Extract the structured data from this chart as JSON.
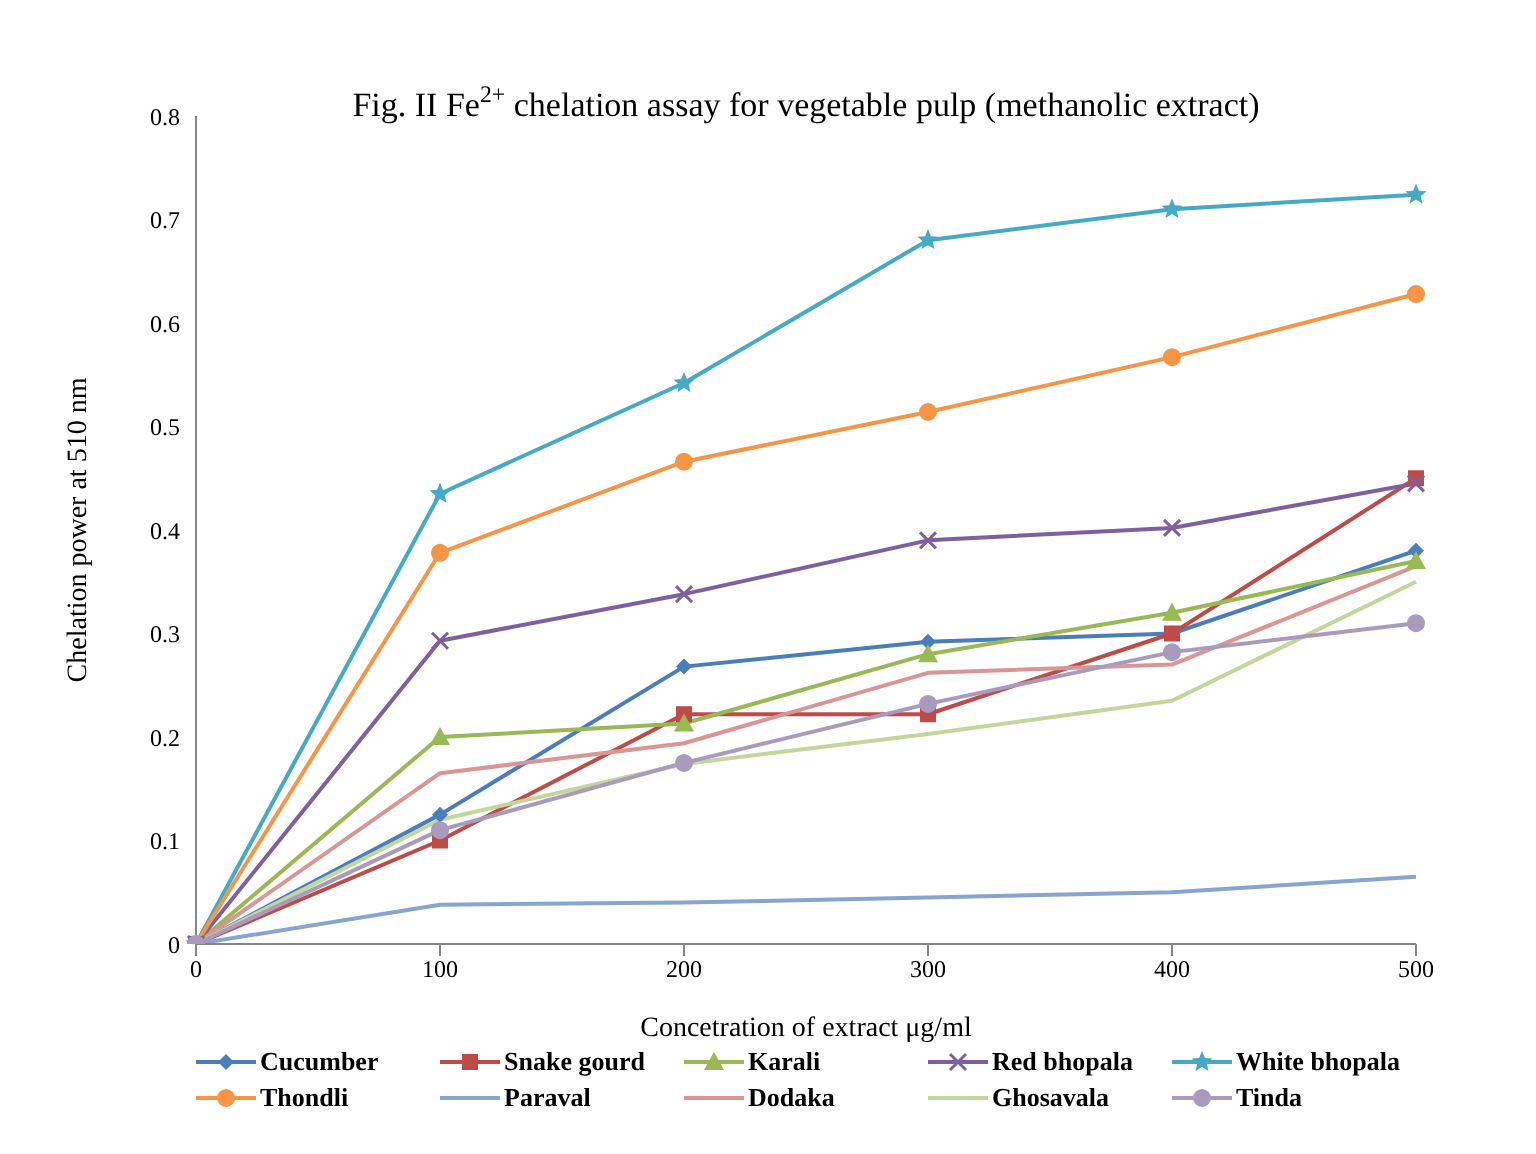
{
  "chart_data": {
    "type": "line",
    "title": "Fig. II Fe$^{2+}$ chelation assay for vegetable pulp (methanolic extract)",
    "xlabel": "Concetration of extract μg/ml",
    "ylabel": "Chelation power at 510 nm",
    "categories": [
      "0",
      "100",
      "200",
      "300",
      "400",
      "500"
    ],
    "ylim": [
      0,
      0.8
    ],
    "yticks": [
      0,
      0.1,
      0.2,
      0.3,
      0.4,
      0.5,
      0.6,
      0.7,
      0.8
    ],
    "grid": false,
    "legend": "bottom",
    "series": [
      {
        "name": "Cucumber",
        "color": "#4a7ebb",
        "marker": "diamond",
        "values": [
          0,
          0.125,
          0.268,
          0.292,
          0.3,
          0.38
        ]
      },
      {
        "name": "Snake gourd",
        "color": "#be4b48",
        "marker": "square",
        "values": [
          0,
          0.1,
          0.222,
          0.222,
          0.3,
          0.45
        ]
      },
      {
        "name": "Karali",
        "color": "#98b954",
        "marker": "triangle",
        "values": [
          0,
          0.2,
          0.213,
          0.28,
          0.32,
          0.37
        ]
      },
      {
        "name": "Red bhopala",
        "color": "#7d60a0",
        "marker": "cross",
        "values": [
          0,
          0.293,
          0.338,
          0.39,
          0.402,
          0.445
        ]
      },
      {
        "name": "White bhopala",
        "color": "#46aac5",
        "marker": "star",
        "values": [
          0,
          0.435,
          0.542,
          0.68,
          0.71,
          0.724
        ]
      },
      {
        "name": "Thondli",
        "color": "#f69546",
        "marker": "circle",
        "values": [
          0,
          0.378,
          0.466,
          0.514,
          0.567,
          0.628
        ]
      },
      {
        "name": "Paraval",
        "color": "#8aa4d0",
        "marker": "none",
        "values": [
          0,
          0.038,
          0.04,
          0.045,
          0.05,
          0.065
        ]
      },
      {
        "name": "Dodaka",
        "color": "#d99694",
        "marker": "none",
        "values": [
          0,
          0.165,
          0.194,
          0.262,
          0.27,
          0.365
        ]
      },
      {
        "name": "Ghosavala",
        "color": "#c3d69b",
        "marker": "none",
        "values": [
          0,
          0.12,
          0.174,
          0.203,
          0.235,
          0.35
        ]
      },
      {
        "name": "Tinda",
        "color": "#a99bbd",
        "marker": "circle",
        "values": [
          0,
          0.11,
          0.175,
          0.232,
          0.282,
          0.31
        ]
      }
    ]
  }
}
